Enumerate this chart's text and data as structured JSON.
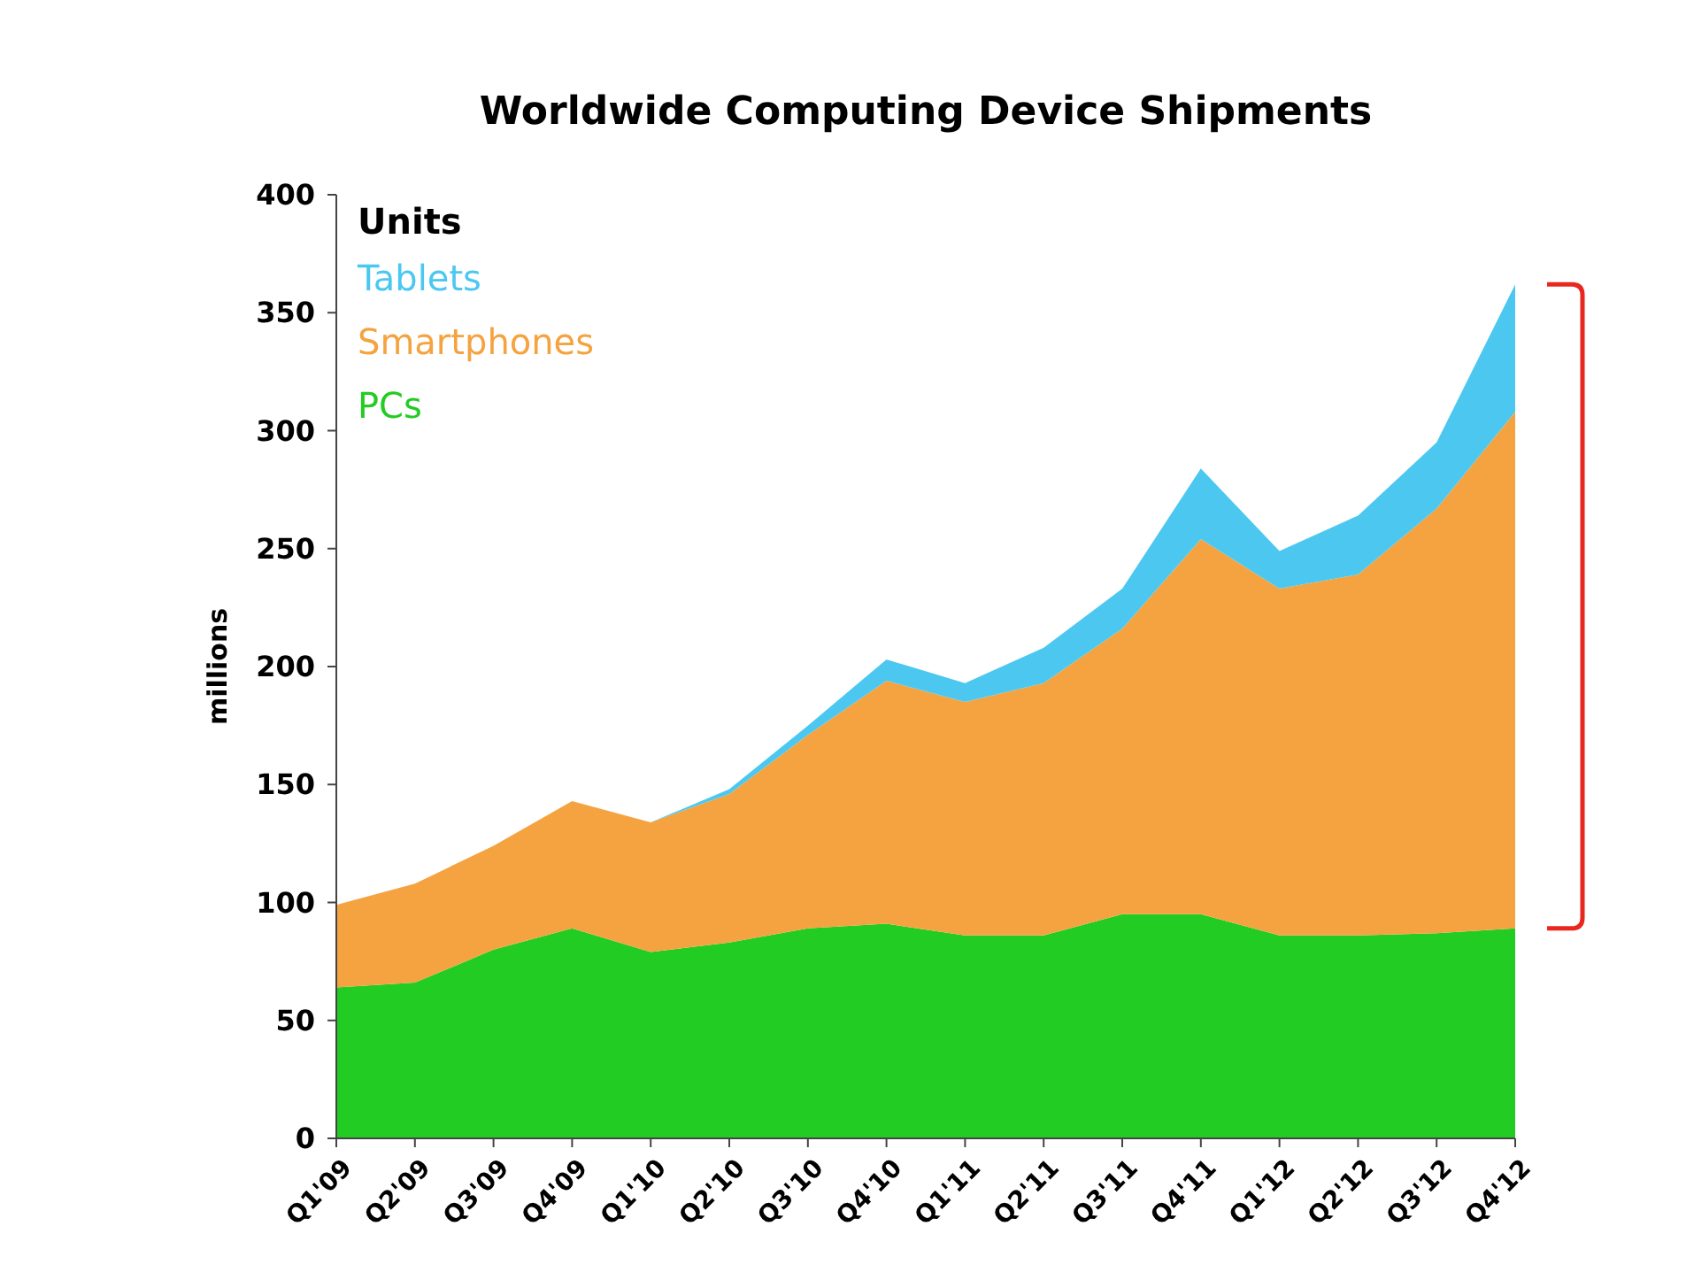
{
  "chart_data": {
    "type": "area",
    "stacked": true,
    "title": "Worldwide Computing Device Shipments",
    "ylabel": "millions",
    "legend_title": "Units",
    "legend": "top left",
    "categories": [
      "Q1'09",
      "Q2'09",
      "Q3'09",
      "Q4'09",
      "Q1'10",
      "Q2'10",
      "Q3'10",
      "Q4'10",
      "Q1'11",
      "Q2'11",
      "Q3'11",
      "Q4'11",
      "Q1'12",
      "Q2'12",
      "Q3'12",
      "Q4'12"
    ],
    "ylim": [
      0,
      400
    ],
    "yticks": [
      0,
      50,
      100,
      150,
      200,
      250,
      300,
      350,
      400
    ],
    "grid": false,
    "series": [
      {
        "name": "PCs",
        "color": "#22cc22",
        "values": [
          64,
          66,
          80,
          89,
          79,
          83,
          89,
          91,
          86,
          86,
          95,
          95,
          86,
          86,
          87,
          89
        ]
      },
      {
        "name": "Smartphones",
        "color": "#f5a340",
        "values": [
          35,
          42,
          44,
          54,
          55,
          63,
          82,
          103,
          99,
          107,
          121,
          159,
          147,
          153,
          180,
          219
        ]
      },
      {
        "name": "Tablets",
        "color": "#4cc8f0",
        "values": [
          0,
          0,
          0,
          0,
          0,
          2,
          4,
          9,
          8,
          15,
          17,
          30,
          16,
          25,
          28,
          54
        ]
      }
    ]
  }
}
